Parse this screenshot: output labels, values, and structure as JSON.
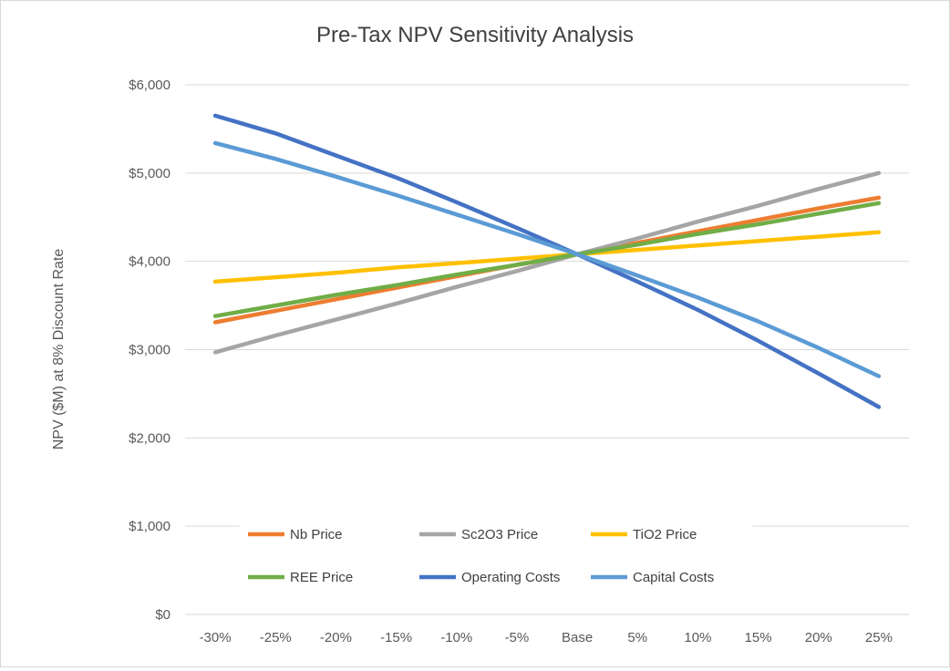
{
  "chart_data": {
    "type": "line",
    "title": "Pre-Tax NPV Sensitivity Analysis",
    "xlabel": "",
    "ylabel": "NPV  ($M) at 8% Discount Rate",
    "categories": [
      "-30%",
      "-25%",
      "-20%",
      "-15%",
      "-10%",
      "-5%",
      "Base",
      "5%",
      "10%",
      "15%",
      "20%",
      "25%"
    ],
    "ylim": [
      0,
      6000
    ],
    "yticks": [
      0,
      1000,
      2000,
      3000,
      4000,
      5000,
      6000
    ],
    "ytick_labels": [
      "$0",
      "$1,000",
      "$2,000",
      "$3,000",
      "$4,000",
      "$5,000",
      "$6,000"
    ],
    "grid": true,
    "legend_position": "bottom-inside",
    "series": [
      {
        "name": "Nb Price",
        "color": "#ED7D31",
        "values": [
          3310,
          3440,
          3570,
          3700,
          3830,
          3960,
          4080,
          4210,
          4340,
          4470,
          4600,
          4720
        ]
      },
      {
        "name": "Sc2O3 Price",
        "color": "#A5A5A5",
        "values": [
          2970,
          3160,
          3340,
          3520,
          3710,
          3890,
          4080,
          4260,
          4450,
          4630,
          4820,
          5000
        ]
      },
      {
        "name": "TiO2 Price",
        "color": "#FFC000",
        "values": [
          3770,
          3820,
          3870,
          3930,
          3980,
          4030,
          4080,
          4130,
          4180,
          4230,
          4280,
          4330
        ]
      },
      {
        "name": "REE Price",
        "color": "#70AD47",
        "values": [
          3380,
          3500,
          3620,
          3730,
          3850,
          3960,
          4080,
          4190,
          4310,
          4420,
          4540,
          4660
        ]
      },
      {
        "name": "Operating Costs",
        "color": "#4472C4",
        "values": [
          5650,
          5450,
          5200,
          4950,
          4670,
          4380,
          4080,
          3770,
          3450,
          3100,
          2730,
          2350
        ]
      },
      {
        "name": "Capital Costs",
        "color": "#5B9BD5",
        "values": [
          5340,
          5160,
          4960,
          4750,
          4530,
          4310,
          4080,
          3840,
          3590,
          3320,
          3020,
          2700
        ]
      }
    ]
  }
}
